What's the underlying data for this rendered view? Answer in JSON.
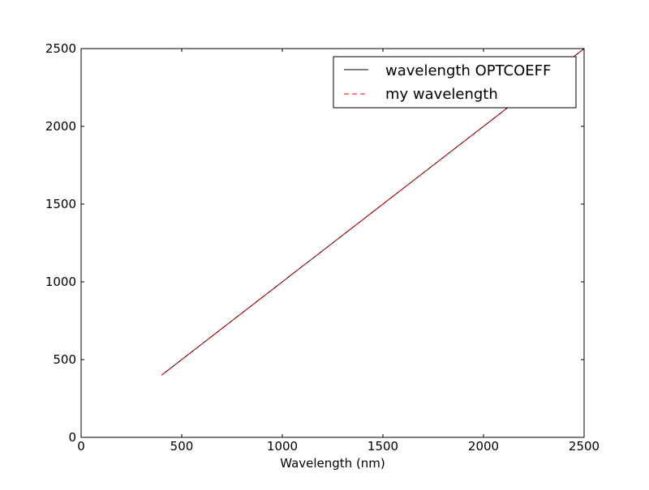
{
  "chart_data": {
    "type": "line",
    "title": "",
    "xlabel": "Wavelength (nm)",
    "ylabel": "",
    "xlim": [
      0,
      2500
    ],
    "ylim": [
      0,
      2500
    ],
    "xticks": [
      0,
      500,
      1000,
      1500,
      2000,
      2500
    ],
    "yticks": [
      0,
      500,
      1000,
      1500,
      2000,
      2500
    ],
    "xtick_labels": [
      "0",
      "500",
      "1000",
      "1500",
      "2000",
      "2500"
    ],
    "ytick_labels": [
      "0",
      "500",
      "1000",
      "1500",
      "2000",
      "2500"
    ],
    "grid": false,
    "legend": "top-right",
    "series": [
      {
        "name": "wavelength OPTCOEFF",
        "color": "#000000",
        "linestyle": "solid",
        "x": [
          400,
          2500
        ],
        "y": [
          400,
          2500
        ]
      },
      {
        "name": "my wavelength",
        "color": "#ff0000",
        "linestyle": "dashed",
        "x": [
          400,
          2500
        ],
        "y": [
          400,
          2500
        ]
      }
    ]
  }
}
